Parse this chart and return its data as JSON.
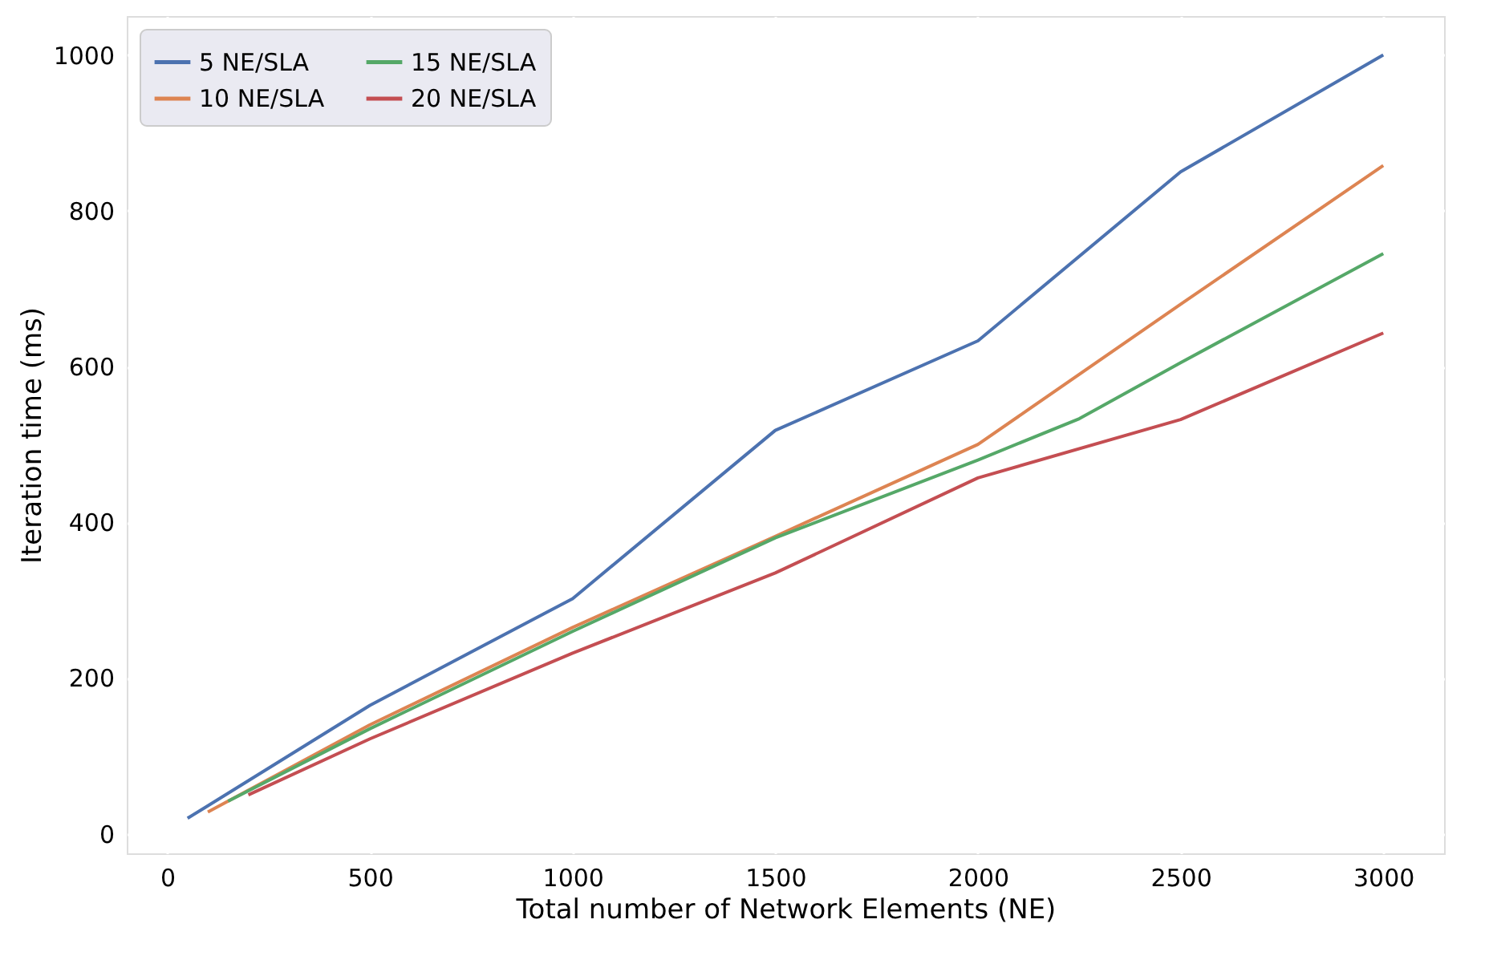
{
  "chart_data": {
    "type": "line",
    "xlabel": "Total number of Network Elements (NE)",
    "ylabel": "Iteration time (ms)",
    "xlim": [
      -100,
      3150
    ],
    "ylim": [
      -25,
      1050
    ],
    "xticks": [
      0,
      500,
      1000,
      1500,
      2000,
      2500,
      3000
    ],
    "yticks": [
      0,
      200,
      400,
      600,
      800,
      1000
    ],
    "grid": true,
    "legend": "top left",
    "line_style": "solid",
    "marker": "none",
    "series": [
      {
        "name": "5 NE/SLA",
        "color": "#4c72b0",
        "x": [
          50,
          500,
          1000,
          1500,
          2000,
          2500,
          3000
        ],
        "values": [
          20,
          165,
          302,
          518,
          633,
          850,
          1000
        ]
      },
      {
        "name": "10 NE/SLA",
        "color": "#dd8452",
        "x": [
          100,
          500,
          1000,
          1500,
          2000,
          2500,
          3000
        ],
        "values": [
          28,
          140,
          265,
          382,
          500,
          680,
          858
        ]
      },
      {
        "name": "15 NE/SLA",
        "color": "#55a868",
        "x": [
          150,
          500,
          1000,
          1500,
          2000,
          2250,
          2500,
          3000
        ],
        "values": [
          42,
          135,
          260,
          380,
          480,
          533,
          605,
          745
        ]
      },
      {
        "name": "20 NE/SLA",
        "color": "#c44e52",
        "x": [
          200,
          500,
          1000,
          1500,
          2000,
          2500,
          3000
        ],
        "values": [
          50,
          122,
          232,
          335,
          457,
          532,
          643
        ]
      }
    ]
  }
}
